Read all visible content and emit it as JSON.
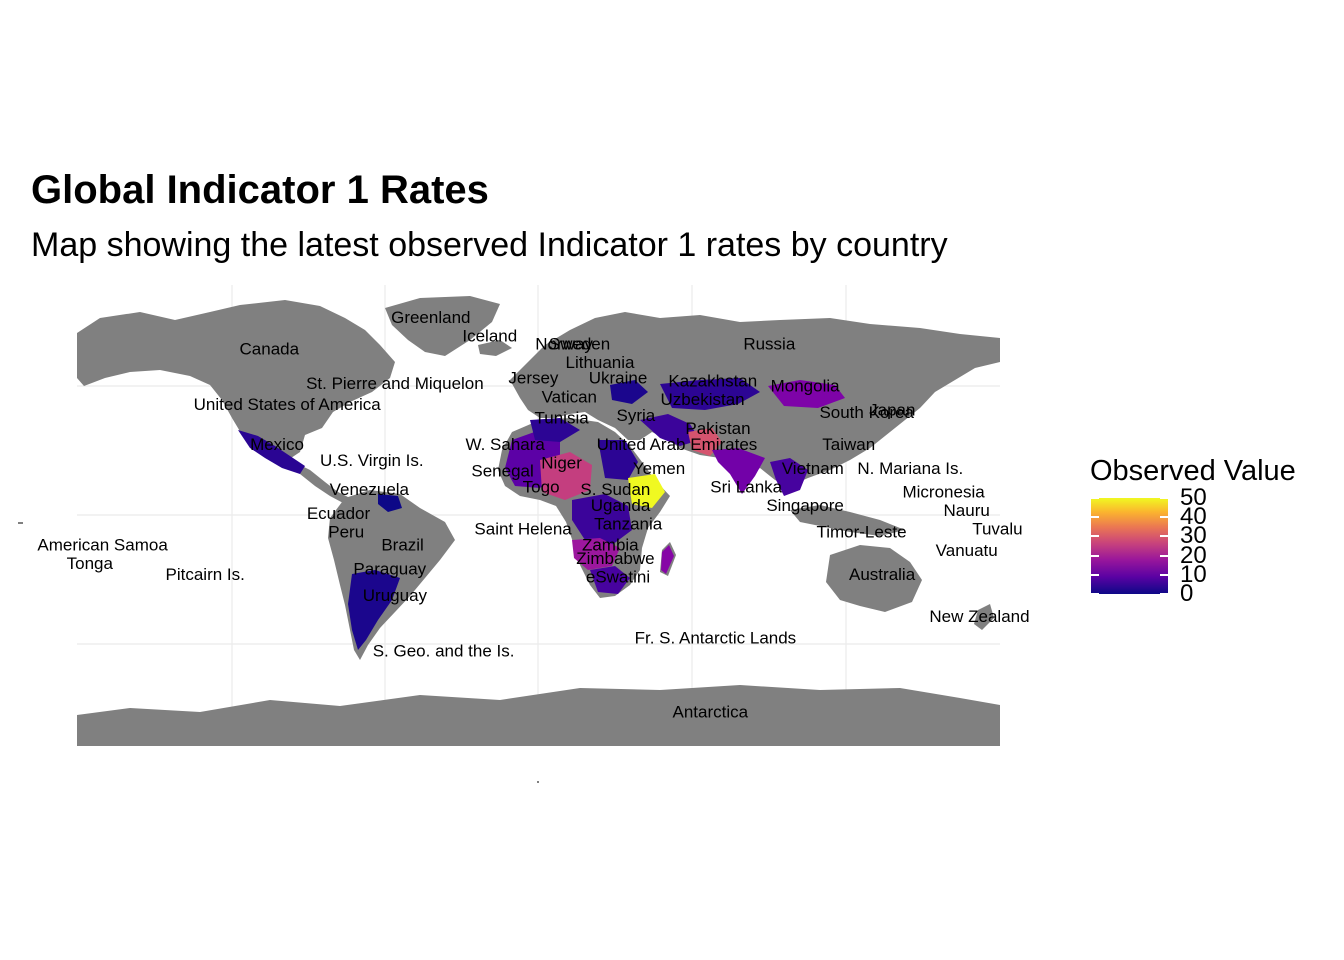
{
  "title": "Global Indicator 1 Rates",
  "subtitle": "Map showing the latest observed Indicator 1 rates by country",
  "colors": {
    "land_no_data": "#808080",
    "grid": "#ebebeb",
    "scale_low": "#0d0887",
    "scale_high": "#f0f921"
  },
  "legend": {
    "title": "Observed Value",
    "ticks": [
      "0",
      "10",
      "20",
      "30",
      "40",
      "50"
    ],
    "tick_values": [
      0,
      10,
      20,
      30,
      40,
      50
    ],
    "scale": "plasma"
  },
  "labels": [
    {
      "name": "Norway",
      "lon": 10,
      "lat": 62
    },
    {
      "name": "Greenland",
      "lon": -42,
      "lat": 72
    },
    {
      "name": "Iceland",
      "lon": -19,
      "lat": 65
    },
    {
      "name": "Sweden",
      "lon": 16,
      "lat": 62
    },
    {
      "name": "Canada",
      "lon": -105,
      "lat": 60
    },
    {
      "name": "Russia",
      "lon": 90,
      "lat": 62
    },
    {
      "name": "Lithuania",
      "lon": 24,
      "lat": 55
    },
    {
      "name": "St. Pierre and Miquelon",
      "lon": -56,
      "lat": 47
    },
    {
      "name": "Jersey",
      "lon": -2,
      "lat": 49
    },
    {
      "name": "Ukraine",
      "lon": 31,
      "lat": 49
    },
    {
      "name": "Kazakhstan",
      "lon": 68,
      "lat": 48
    },
    {
      "name": "Mongolia",
      "lon": 104,
      "lat": 46
    },
    {
      "name": "Japan",
      "lon": 138,
      "lat": 37
    },
    {
      "name": "Vatican",
      "lon": 12,
      "lat": 42
    },
    {
      "name": "Uzbekistan",
      "lon": 64,
      "lat": 41
    },
    {
      "name": "United States of America",
      "lon": -98,
      "lat": 39
    },
    {
      "name": "Tunisia",
      "lon": 9,
      "lat": 34
    },
    {
      "name": "Syria",
      "lon": 38,
      "lat": 35
    },
    {
      "name": "South Korea",
      "lon": 128,
      "lat": 36
    },
    {
      "name": "Pakistan",
      "lon": 70,
      "lat": 30
    },
    {
      "name": "W. Sahara",
      "lon": -13,
      "lat": 24
    },
    {
      "name": "United Arab Emirates",
      "lon": 54,
      "lat": 24
    },
    {
      "name": "Taiwan",
      "lon": 121,
      "lat": 24
    },
    {
      "name": "Mexico",
      "lon": -102,
      "lat": 24
    },
    {
      "name": "U.S. Virgin Is.",
      "lon": -65,
      "lat": 18
    },
    {
      "name": "Niger",
      "lon": 9,
      "lat": 17
    },
    {
      "name": "Yemen",
      "lon": 47,
      "lat": 15
    },
    {
      "name": "Vietnam",
      "lon": 107,
      "lat": 15
    },
    {
      "name": "N. Mariana Is.",
      "lon": 145,
      "lat": 15
    },
    {
      "name": "Senegal",
      "lon": -14,
      "lat": 14
    },
    {
      "name": "Togo",
      "lon": 1,
      "lat": 8
    },
    {
      "name": "S. Sudan",
      "lon": 30,
      "lat": 7
    },
    {
      "name": "Sri Lanka",
      "lon": 81,
      "lat": 8
    },
    {
      "name": "Venezuela",
      "lon": -66,
      "lat": 7
    },
    {
      "name": "Micronesia",
      "lon": 158,
      "lat": 6
    },
    {
      "name": "Singapore",
      "lon": 104,
      "lat": 1
    },
    {
      "name": "Uganda",
      "lon": 32,
      "lat": 1
    },
    {
      "name": "Ecuador",
      "lon": -78,
      "lat": -2
    },
    {
      "name": "Nauru",
      "lon": 167,
      "lat": -1
    },
    {
      "name": "Tanzania",
      "lon": 35,
      "lat": -6
    },
    {
      "name": "Saint Helena",
      "lon": -6,
      "lat": -8
    },
    {
      "name": "Peru",
      "lon": -75,
      "lat": -9
    },
    {
      "name": "Tuvalu",
      "lon": 179,
      "lat": -8
    },
    {
      "name": "Timor-Leste",
      "lon": 126,
      "lat": -9
    },
    {
      "name": "Brazil",
      "lon": -53,
      "lat": -14
    },
    {
      "name": "Zambia",
      "lon": 28,
      "lat": -14
    },
    {
      "name": "American Samoa",
      "lon": -170,
      "lat": -14
    },
    {
      "name": "Vanuatu",
      "lon": 167,
      "lat": -16
    },
    {
      "name": "Zimbabwe",
      "lon": 30,
      "lat": -19
    },
    {
      "name": "Tonga",
      "lon": -175,
      "lat": -21
    },
    {
      "name": "Paraguay",
      "lon": -58,
      "lat": -23
    },
    {
      "name": "eSwatini",
      "lon": 31,
      "lat": -26
    },
    {
      "name": "Pitcairn Is.",
      "lon": -130,
      "lat": -25
    },
    {
      "name": "Australia",
      "lon": 134,
      "lat": -25
    },
    {
      "name": "Uruguay",
      "lon": -56,
      "lat": -33
    },
    {
      "name": "New Zealand",
      "lon": 172,
      "lat": -41
    },
    {
      "name": "Fr. S. Antarctic Lands",
      "lon": 69,
      "lat": -49
    },
    {
      "name": "S. Geo. and the Is.",
      "lon": -37,
      "lat": -54
    },
    {
      "name": "Antarctica",
      "lon": 67,
      "lat": -77
    }
  ],
  "observed": [
    {
      "name": "Mexico",
      "value": 5
    },
    {
      "name": "Argentina",
      "value": 4
    },
    {
      "name": "Niger",
      "value": 22
    },
    {
      "name": "Yemen",
      "value": 50
    },
    {
      "name": "Mongolia",
      "value": 15
    },
    {
      "name": "Kazakhstan",
      "value": 4
    },
    {
      "name": "India",
      "value": 12
    },
    {
      "name": "Zambia",
      "value": 20
    },
    {
      "name": "Madagascar",
      "value": 18
    },
    {
      "name": "Pakistan",
      "value": 25
    }
  ]
}
